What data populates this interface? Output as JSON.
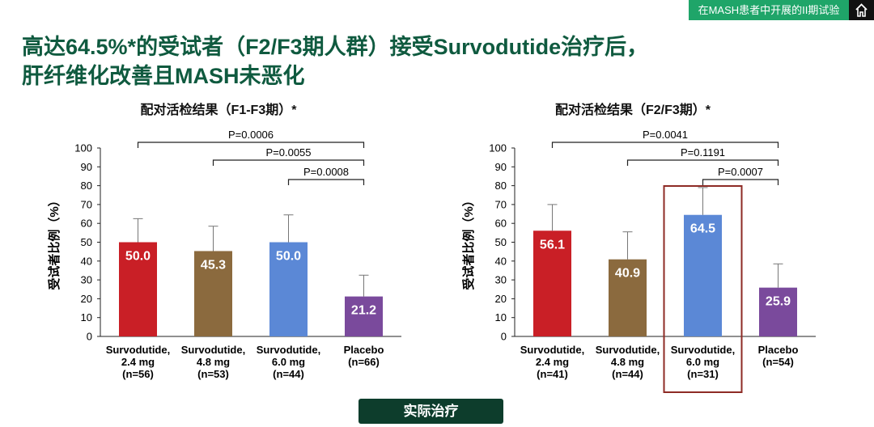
{
  "header": {
    "tag": "在MASH患者中开展的II期试验",
    "home_icon": "home-icon"
  },
  "headline": {
    "line1": "高达64.5%*的受试者（F2/F3期人群）接受Survodutide治疗后，",
    "line2": "肝纤维化改善且MASH未恶化"
  },
  "footer": {
    "button_label": "实际治疗"
  },
  "chart_data": [
    {
      "type": "bar",
      "title": "配对活检结果（F1-F3期）*",
      "ylabel": "受试者比例（%）",
      "ylim": [
        0,
        100
      ],
      "yticks": [
        0,
        10,
        20,
        30,
        40,
        50,
        60,
        70,
        80,
        90,
        100
      ],
      "categories": [
        [
          "Survodutide,",
          "2.4 mg",
          "(n=56)"
        ],
        [
          "Survodutide,",
          "4.8 mg",
          "(n=53)"
        ],
        [
          "Survodutide,",
          "6.0 mg",
          "(n=44)"
        ],
        [
          "Placebo",
          "(n=66)"
        ]
      ],
      "values": [
        50.0,
        45.3,
        50.0,
        21.2
      ],
      "value_labels": [
        "50.0",
        "45.3",
        "50.0",
        "21.2"
      ],
      "error_upper": [
        62.5,
        58.5,
        64.5,
        32.5
      ],
      "colors": [
        "#c91f26",
        "#8b6a3e",
        "#5b88d6",
        "#7a4a9c"
      ],
      "comparisons": [
        {
          "from": 0,
          "to": 3,
          "label": "P=0.0006"
        },
        {
          "from": 1,
          "to": 3,
          "label": "P=0.0055"
        },
        {
          "from": 2,
          "to": 3,
          "label": "P=0.0008"
        }
      ],
      "highlight_index": null
    },
    {
      "type": "bar",
      "title": "配对活检结果（F2/F3期）*",
      "ylabel": "受试者比例（%）",
      "ylim": [
        0,
        100
      ],
      "yticks": [
        0,
        10,
        20,
        30,
        40,
        50,
        60,
        70,
        80,
        90,
        100
      ],
      "categories": [
        [
          "Survodutide,",
          "2.4 mg",
          "(n=41)"
        ],
        [
          "Survodutide,",
          "4.8 mg",
          "(n=44)"
        ],
        [
          "Survodutide,",
          "6.0 mg",
          "(n=31)"
        ],
        [
          "Placebo",
          "(n=54)"
        ]
      ],
      "values": [
        56.1,
        40.9,
        64.5,
        25.9
      ],
      "value_labels": [
        "56.1",
        "40.9",
        "64.5",
        "25.9"
      ],
      "error_upper": [
        70.0,
        55.5,
        79.0,
        38.5
      ],
      "colors": [
        "#c91f26",
        "#8b6a3e",
        "#5b88d6",
        "#7a4a9c"
      ],
      "comparisons": [
        {
          "from": 0,
          "to": 3,
          "label": "P=0.0041"
        },
        {
          "from": 1,
          "to": 3,
          "label": "P=0.1191"
        },
        {
          "from": 2,
          "to": 3,
          "label": "P=0.0007"
        }
      ],
      "highlight_index": 2
    }
  ]
}
